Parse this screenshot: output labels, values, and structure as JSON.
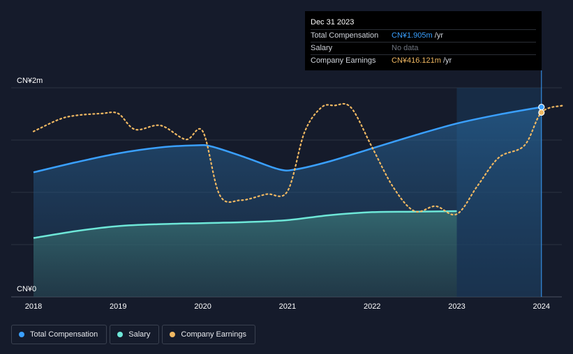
{
  "tooltip": {
    "date": "Dec 31 2023",
    "rows": [
      {
        "label": "Total Compensation",
        "value": "CN¥1.905m",
        "unit": " /yr"
      },
      {
        "label": "Salary",
        "value": "No data"
      },
      {
        "label": "Company Earnings",
        "value": "CN¥416.121m",
        "unit": " /yr"
      }
    ]
  },
  "legend": [
    {
      "label": "Total Compensation",
      "color": "#3aa0ff"
    },
    {
      "label": "Salary",
      "color": "#6ee7d8"
    },
    {
      "label": "Company Earnings",
      "color": "#f0b862"
    }
  ],
  "chart_data": {
    "type": "line",
    "title": "",
    "y_labels": [
      "CN¥2m",
      "CN¥0"
    ],
    "ylim": [
      0,
      2.0
    ],
    "xlim": [
      2018.0,
      2024.25
    ],
    "x_ticks": [
      "2018",
      "2019",
      "2020",
      "2021",
      "2022",
      "2023",
      "2024"
    ],
    "highlight_range": [
      2023.0,
      2024.0
    ],
    "colors": {
      "total": "#3aa0ff",
      "salary": "#6ee7d8",
      "earnings": "#f0b862"
    },
    "series": [
      {
        "name": "Total Compensation",
        "unit": "CN¥m",
        "x": [
          2018.0,
          2018.5,
          2019.0,
          2019.5,
          2019.9,
          2020.1,
          2020.5,
          2020.9,
          2021.1,
          2021.5,
          2022.0,
          2022.5,
          2023.0,
          2023.5,
          2024.0
        ],
        "values": [
          1.25,
          1.35,
          1.44,
          1.5,
          1.52,
          1.51,
          1.4,
          1.28,
          1.28,
          1.36,
          1.49,
          1.62,
          1.74,
          1.83,
          1.905
        ]
      },
      {
        "name": "Salary",
        "unit": "CN¥m",
        "x": [
          2018.0,
          2018.5,
          2019.0,
          2019.5,
          2020.0,
          2020.5,
          2021.0,
          2021.5,
          2022.0,
          2022.5,
          2023.0
        ],
        "values": [
          0.59,
          0.66,
          0.71,
          0.73,
          0.74,
          0.75,
          0.77,
          0.82,
          0.85,
          0.855,
          0.86
        ]
      },
      {
        "name": "Company Earnings",
        "unit": "relative",
        "x": [
          2018.0,
          2018.3,
          2018.5,
          2018.8,
          2019.0,
          2019.2,
          2019.5,
          2019.8,
          2020.0,
          2020.2,
          2020.45,
          2020.75,
          2021.0,
          2021.2,
          2021.4,
          2021.55,
          2021.75,
          2022.0,
          2022.25,
          2022.5,
          2022.75,
          2023.0,
          2023.25,
          2023.5,
          2023.8,
          2024.0,
          2024.25
        ],
        "values": [
          1.66,
          1.78,
          1.82,
          1.84,
          1.84,
          1.68,
          1.72,
          1.58,
          1.66,
          1.02,
          0.97,
          1.03,
          1.06,
          1.65,
          1.9,
          1.92,
          1.9,
          1.5,
          1.1,
          0.86,
          0.91,
          0.83,
          1.12,
          1.4,
          1.52,
          1.85,
          1.92
        ]
      }
    ]
  }
}
